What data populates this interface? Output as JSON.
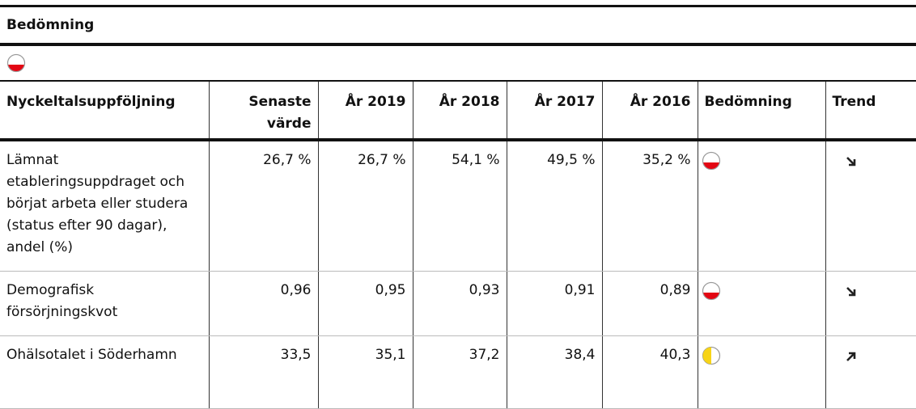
{
  "header": {
    "title": "Bedömning"
  },
  "table": {
    "columns": [
      "Nyckeltalsuppföljning",
      "Senaste värde",
      "År 2019",
      "År 2018",
      "År 2017",
      "År 2016",
      "Bedömning",
      "Trend"
    ],
    "rows": [
      [
        "Lämnat etableringsuppdraget och börjat arbeta eller studera (status efter 90 dagar), andel (%)",
        "26,7 %",
        "26,7 %",
        "54,1 %",
        "49,5 %",
        "35,2 %"
      ],
      [
        "Demografisk försörjningskvot",
        "0,96",
        "0,95",
        "0,93",
        "0,91",
        "0,89"
      ],
      [
        "Ohälsotalet i Söderhamn",
        "33,5",
        "35,1",
        "37,2",
        "38,4",
        "40,3"
      ]
    ]
  }
}
